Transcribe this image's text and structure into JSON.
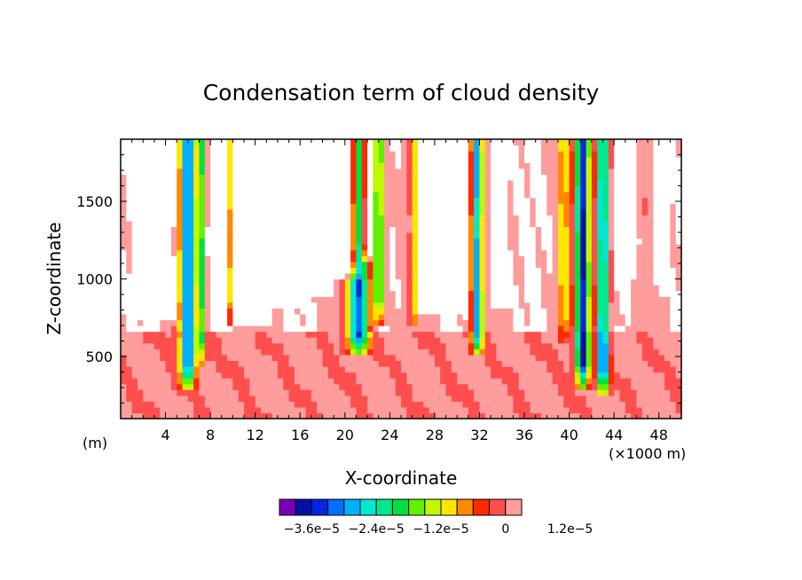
{
  "chart_data": {
    "type": "heatmap",
    "title": "Condensation term of cloud density",
    "xlabel": "X-coordinate",
    "ylabel": "Z-coordinate",
    "x_unit_left": "(m)",
    "x_unit_right": "(×1000 m)",
    "xlim": [
      0,
      50
    ],
    "ylim": [
      100,
      1900
    ],
    "x_ticks": [
      4,
      8,
      12,
      16,
      20,
      24,
      28,
      32,
      36,
      40,
      44,
      48
    ],
    "y_ticks": [
      500,
      1000,
      1500
    ],
    "grid": false,
    "colorbar": {
      "placement": "bottom",
      "min": -4.2e-05,
      "step": 3e-06,
      "colors": [
        "#7a00b8",
        "#0010a8",
        "#0026e0",
        "#0070ff",
        "#00b0ff",
        "#00e8d0",
        "#00e890",
        "#00e040",
        "#60f000",
        "#c0f800",
        "#ffe600",
        "#ff8a00",
        "#ff2a00",
        "#ff4e4e",
        "#ff9c9c"
      ],
      "tick_labels": [
        "−3.6e−5",
        "−2.4e−5",
        "−1.2e−5",
        "0",
        "1.2e−5"
      ],
      "tick_values": [
        -3.6e-05,
        -2.4e-05,
        -1.2e-05,
        0,
        1.2e-05
      ]
    },
    "out_of_range_color": "#ffffff"
  }
}
